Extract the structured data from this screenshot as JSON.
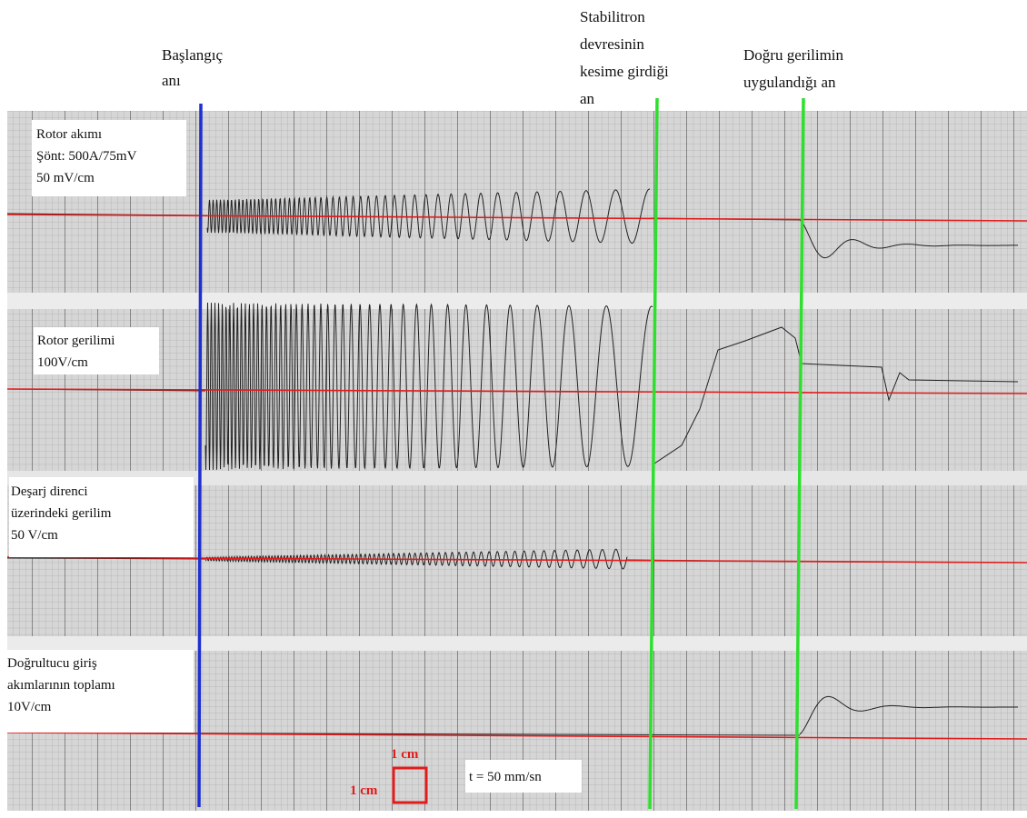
{
  "annotations": {
    "start": [
      "Başlangıç",
      "anı"
    ],
    "stabilitron": [
      "Stabilitron",
      "devresinin",
      "kesime girdiği",
      "an"
    ],
    "dc_applied": [
      "Doğru gerilimin",
      "uygulandığı an"
    ]
  },
  "channels": [
    {
      "label": [
        "Rotor akımı",
        "Şönt: 500A/75mV",
        "50 mV/cm"
      ]
    },
    {
      "label": [
        "Rotor gerilimi",
        "100V/cm"
      ]
    },
    {
      "label": [
        "Deşarj direnci",
        "üzerindeki gerilim",
        "50 V/cm"
      ]
    },
    {
      "label": [
        "Doğrultucu giriş",
        "akımlarının toplamı",
        "10V/cm"
      ]
    }
  ],
  "scale": {
    "cm_horizontal": "1 cm",
    "cm_vertical": "1 cm",
    "speed": "t = 50 mm/sn"
  }
}
